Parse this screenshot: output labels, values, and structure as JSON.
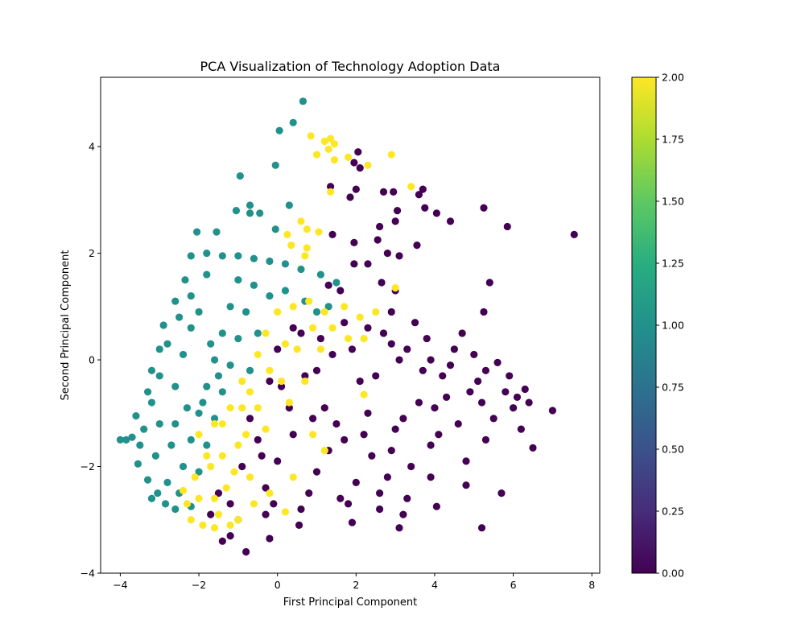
{
  "chart_data": {
    "type": "scatter",
    "title": "PCA Visualization of Technology Adoption Data",
    "xlabel": "First Principal Component",
    "ylabel": "Second Principal Component",
    "xlim": [
      -4.5,
      8.2
    ],
    "ylim": [
      -4.0,
      5.3
    ],
    "x_ticks": [
      -4,
      -2,
      0,
      2,
      4,
      6,
      8
    ],
    "x_tick_labels": [
      "−4",
      "−2",
      "0",
      "2",
      "4",
      "6",
      "8"
    ],
    "y_ticks": [
      -4,
      -2,
      0,
      2,
      4
    ],
    "y_tick_labels": [
      "−4",
      "−2",
      "0",
      "2",
      "4"
    ],
    "grid": false,
    "colormap": "viridis",
    "colorbar": {
      "range": [
        0.0,
        2.0
      ],
      "ticks": [
        0.0,
        0.25,
        0.5,
        0.75,
        1.0,
        1.25,
        1.5,
        1.75,
        2.0
      ],
      "tick_labels": [
        "0.00",
        "0.25",
        "0.50",
        "0.75",
        "1.00",
        "1.25",
        "1.50",
        "1.75",
        "2.00"
      ]
    },
    "classes": [
      {
        "value": 0,
        "color": "#440154"
      },
      {
        "value": 1,
        "color": "#21918c"
      },
      {
        "value": 2,
        "color": "#fde725"
      }
    ],
    "series": [
      {
        "value": 0,
        "points": [
          [
            -1.4,
            -3.4
          ],
          [
            -1.2,
            -3.3
          ],
          [
            -0.8,
            -3.6
          ],
          [
            -0.2,
            -3.35
          ],
          [
            0.55,
            -3.1
          ],
          [
            1.9,
            -3.05
          ],
          [
            3.1,
            -3.15
          ],
          [
            3.2,
            -2.9
          ],
          [
            4.05,
            -2.75
          ],
          [
            5.2,
            -3.15
          ],
          [
            5.7,
            -2.5
          ],
          [
            4.8,
            -2.35
          ],
          [
            6.5,
            -1.65
          ],
          [
            7.0,
            -0.95
          ],
          [
            6.3,
            -0.55
          ],
          [
            6.1,
            -0.7
          ],
          [
            5.6,
            -0.05
          ],
          [
            5.9,
            -0.3
          ],
          [
            6.2,
            -1.3
          ],
          [
            5.3,
            -1.5
          ],
          [
            4.8,
            -1.9
          ],
          [
            3.9,
            -2.2
          ],
          [
            2.6,
            -2.8
          ],
          [
            1.8,
            -2.7
          ],
          [
            0.6,
            -2.8
          ],
          [
            -0.3,
            -2.9
          ],
          [
            -1.0,
            -3.0
          ],
          [
            -0.5,
            -1.5
          ],
          [
            0.1,
            -0.5
          ],
          [
            0.6,
            0.5
          ],
          [
            1.3,
            1.4
          ],
          [
            1.6,
            1.3
          ],
          [
            2.7,
            0.5
          ],
          [
            3.3,
            0.2
          ],
          [
            4.2,
            -0.3
          ],
          [
            5.2,
            -0.8
          ],
          [
            3.0,
            -1.3
          ],
          [
            2.4,
            -1.8
          ],
          [
            1.5,
            -1.2
          ],
          [
            1.0,
            -2.1
          ],
          [
            3.6,
            -0.8
          ],
          [
            4.6,
            -1.2
          ],
          [
            2.1,
            -0.4
          ],
          [
            1.0,
            -0.2
          ],
          [
            0.4,
            -1.4
          ],
          [
            -0.3,
            -2.4
          ],
          [
            -0.7,
            -1.1
          ],
          [
            0.0,
            -1.9
          ],
          [
            2.8,
            -2.2
          ],
          [
            4.4,
            -0.1
          ],
          [
            5.0,
            0.1
          ],
          [
            3.8,
            0.4
          ],
          [
            7.55,
            2.35
          ],
          [
            5.85,
            2.5
          ],
          [
            5.25,
            2.85
          ],
          [
            5.4,
            1.45
          ],
          [
            5.25,
            0.9
          ],
          [
            4.4,
            2.6
          ],
          [
            4.05,
            2.75
          ],
          [
            3.75,
            2.85
          ],
          [
            3.6,
            3.1
          ],
          [
            3.7,
            3.2
          ],
          [
            3.05,
            2.8
          ],
          [
            3.0,
            2.6
          ],
          [
            2.95,
            3.15
          ],
          [
            2.6,
            2.5
          ],
          [
            2.55,
            2.25
          ],
          [
            2.8,
            2.0
          ],
          [
            3.1,
            1.95
          ],
          [
            3.55,
            2.15
          ],
          [
            2.3,
            1.8
          ],
          [
            1.95,
            2.2
          ],
          [
            1.95,
            1.8
          ],
          [
            1.4,
            2.35
          ],
          [
            2.65,
            1.45
          ],
          [
            2.1,
            3.6
          ],
          [
            2.05,
            3.9
          ],
          [
            1.95,
            3.7
          ],
          [
            1.85,
            3.05
          ],
          [
            1.35,
            3.25
          ],
          [
            2.0,
            3.2
          ],
          [
            2.7,
            3.15
          ],
          [
            3.0,
            1.3
          ],
          [
            2.9,
            0.9
          ],
          [
            1.7,
            0.7
          ],
          [
            0.4,
            0.6
          ],
          [
            0.0,
            0.2
          ],
          [
            -0.2,
            -0.4
          ],
          [
            -0.9,
            -2.0
          ],
          [
            -1.5,
            -2.5
          ],
          [
            -1.7,
            -2.9
          ],
          [
            2.3,
            -1.0
          ],
          [
            4.9,
            -0.6
          ],
          [
            5.5,
            -1.1
          ],
          [
            6.0,
            -0.9
          ],
          [
            3.3,
            -2.6
          ],
          [
            3.9,
            -1.6
          ],
          [
            1.2,
            -0.9
          ],
          [
            0.7,
            -0.3
          ],
          [
            1.9,
            0.2
          ],
          [
            2.5,
            -0.3
          ],
          [
            3.1,
            0.0
          ],
          [
            3.7,
            -0.2
          ],
          [
            4.3,
            -0.7
          ],
          [
            2.0,
            -2.3
          ],
          [
            1.3,
            -1.7
          ],
          [
            0.8,
            -2.5
          ],
          [
            -0.1,
            -2.7
          ],
          [
            2.9,
            -1.7
          ],
          [
            4.1,
            -1.4
          ],
          [
            5.1,
            -0.4
          ],
          [
            4.7,
            0.5
          ],
          [
            3.5,
            0.7
          ],
          [
            2.3,
            0.6
          ],
          [
            1.1,
            0.4
          ],
          [
            0.3,
            -0.9
          ],
          [
            -0.4,
            -1.8
          ],
          [
            -1.2,
            -2.7
          ],
          [
            1.6,
            -2.6
          ],
          [
            2.6,
            -2.5
          ],
          [
            3.4,
            -2.0
          ],
          [
            5.8,
            -0.6
          ],
          [
            6.4,
            -0.8
          ],
          [
            3.9,
            0.0
          ],
          [
            2.9,
            0.3
          ],
          [
            1.4,
            0.1
          ],
          [
            0.9,
            -1.1
          ],
          [
            1.7,
            -1.5
          ],
          [
            2.2,
            -1.4
          ],
          [
            3.2,
            -1.1
          ],
          [
            4.0,
            -0.9
          ],
          [
            4.5,
            0.2
          ],
          [
            5.3,
            -0.2
          ]
        ]
      },
      {
        "value": 1,
        "points": [
          [
            0.65,
            4.85
          ],
          [
            0.4,
            4.45
          ],
          [
            0.05,
            4.3
          ],
          [
            -0.05,
            3.65
          ],
          [
            -0.95,
            3.45
          ],
          [
            -0.7,
            2.9
          ],
          [
            -0.7,
            2.75
          ],
          [
            -0.45,
            2.75
          ],
          [
            -1.05,
            2.8
          ],
          [
            0.3,
            2.9
          ],
          [
            -0.05,
            2.45
          ],
          [
            -1.55,
            2.4
          ],
          [
            -2.05,
            2.4
          ],
          [
            -4.0,
            -1.5
          ],
          [
            -3.85,
            -1.5
          ],
          [
            -3.7,
            -1.45
          ],
          [
            -3.5,
            -1.6
          ],
          [
            -3.55,
            -1.95
          ],
          [
            -3.3,
            -2.25
          ],
          [
            -3.2,
            -2.6
          ],
          [
            -3.05,
            -2.5
          ],
          [
            -2.85,
            -2.7
          ],
          [
            -2.6,
            -2.8
          ],
          [
            -2.2,
            -2.75
          ],
          [
            -3.6,
            -1.05
          ],
          [
            -3.3,
            -0.6
          ],
          [
            -3.2,
            -0.2
          ],
          [
            -3.0,
            0.2
          ],
          [
            -2.9,
            0.65
          ],
          [
            -2.6,
            1.1
          ],
          [
            -2.35,
            1.5
          ],
          [
            -2.2,
            1.95
          ],
          [
            -1.8,
            2.0
          ],
          [
            -1.4,
            1.95
          ],
          [
            -1.0,
            1.95
          ],
          [
            -0.6,
            1.9
          ],
          [
            -0.2,
            1.85
          ],
          [
            0.2,
            1.8
          ],
          [
            0.6,
            1.7
          ],
          [
            1.1,
            1.6
          ],
          [
            1.5,
            1.45
          ],
          [
            -1.8,
            1.6
          ],
          [
            -2.2,
            1.2
          ],
          [
            -2.5,
            0.8
          ],
          [
            -2.8,
            0.3
          ],
          [
            -3.0,
            -0.3
          ],
          [
            -3.2,
            -0.8
          ],
          [
            -3.4,
            -1.3
          ],
          [
            -3.1,
            -1.8
          ],
          [
            -2.8,
            -2.3
          ],
          [
            -2.5,
            -2.5
          ],
          [
            -2.4,
            -2.0
          ],
          [
            -2.2,
            -1.5
          ],
          [
            -2.0,
            -1.0
          ],
          [
            -1.8,
            -0.5
          ],
          [
            -1.6,
            0.0
          ],
          [
            -1.4,
            0.5
          ],
          [
            -1.2,
            1.0
          ],
          [
            -1.0,
            1.5
          ],
          [
            -0.6,
            1.4
          ],
          [
            -0.2,
            1.2
          ],
          [
            0.2,
            1.3
          ],
          [
            -0.8,
            0.9
          ],
          [
            -1.0,
            0.4
          ],
          [
            -1.2,
            -0.1
          ],
          [
            -1.4,
            -0.6
          ],
          [
            -1.6,
            -1.1
          ],
          [
            -1.8,
            -1.6
          ],
          [
            -2.0,
            -2.1
          ],
          [
            -2.6,
            -1.2
          ],
          [
            -2.6,
            -0.5
          ],
          [
            -2.4,
            0.1
          ],
          [
            -2.2,
            0.6
          ],
          [
            -2.0,
            0.9
          ],
          [
            -1.7,
            0.3
          ],
          [
            -1.5,
            -0.3
          ],
          [
            -1.9,
            -0.8
          ],
          [
            -2.3,
            -0.9
          ],
          [
            -2.7,
            -1.6
          ],
          [
            -3.0,
            -1.2
          ],
          [
            0.7,
            1.1
          ],
          [
            1.0,
            0.9
          ],
          [
            1.3,
            1.0
          ],
          [
            -0.5,
            0.5
          ],
          [
            -0.7,
            -0.2
          ]
        ]
      },
      {
        "value": 2,
        "points": [
          [
            0.85,
            4.2
          ],
          [
            1.2,
            4.1
          ],
          [
            1.35,
            4.15
          ],
          [
            1.45,
            4.05
          ],
          [
            1.3,
            3.95
          ],
          [
            1.0,
            3.85
          ],
          [
            1.45,
            3.75
          ],
          [
            1.8,
            3.8
          ],
          [
            2.3,
            3.65
          ],
          [
            2.9,
            3.85
          ],
          [
            3.4,
            3.25
          ],
          [
            1.35,
            3.15
          ],
          [
            0.6,
            2.6
          ],
          [
            0.75,
            2.45
          ],
          [
            1.05,
            2.4
          ],
          [
            0.25,
            2.35
          ],
          [
            0.35,
            2.15
          ],
          [
            0.75,
            2.1
          ],
          [
            0.7,
            1.95
          ],
          [
            3.0,
            1.35
          ],
          [
            -0.7,
            -0.6
          ],
          [
            -1.6,
            -1.2
          ],
          [
            -2.1,
            -2.2
          ],
          [
            -2.3,
            -2.7
          ],
          [
            -2.2,
            -3.0
          ],
          [
            -1.9,
            -3.1
          ],
          [
            -1.6,
            -3.15
          ],
          [
            -1.2,
            -3.1
          ],
          [
            -2.4,
            -2.45
          ],
          [
            -2.0,
            -2.6
          ],
          [
            -1.6,
            -2.6
          ],
          [
            -1.3,
            -2.4
          ],
          [
            -1.8,
            -1.8
          ],
          [
            -1.4,
            -1.8
          ],
          [
            -1.0,
            -1.6
          ],
          [
            -1.2,
            -0.9
          ],
          [
            -0.9,
            -0.4
          ],
          [
            -0.5,
            0.1
          ],
          [
            -0.3,
            0.5
          ],
          [
            0.0,
            0.9
          ],
          [
            0.4,
            1.0
          ],
          [
            0.8,
            1.1
          ],
          [
            1.2,
            0.9
          ],
          [
            1.7,
            1.0
          ],
          [
            2.1,
            0.8
          ],
          [
            2.5,
            0.9
          ],
          [
            0.2,
            0.3
          ],
          [
            -0.2,
            -0.2
          ],
          [
            -0.5,
            -0.9
          ],
          [
            -0.8,
            -1.4
          ],
          [
            -1.1,
            -2.1
          ],
          [
            -0.7,
            -2.2
          ],
          [
            -0.3,
            -1.3
          ],
          [
            0.1,
            -0.4
          ],
          [
            0.5,
            0.2
          ],
          [
            0.9,
            0.6
          ],
          [
            1.4,
            0.6
          ],
          [
            -1.7,
            -2.0
          ],
          [
            -2.0,
            -1.4
          ],
          [
            -1.4,
            -1.2
          ],
          [
            -0.9,
            -0.9
          ],
          [
            0.3,
            -0.8
          ],
          [
            0.9,
            -1.4
          ],
          [
            1.2,
            -1.7
          ],
          [
            0.4,
            -2.2
          ],
          [
            -0.2,
            -2.5
          ],
          [
            0.2,
            -2.85
          ],
          [
            2.2,
            -0.65
          ],
          [
            2.2,
            0.4
          ],
          [
            1.8,
            0.4
          ],
          [
            1.1,
            0.2
          ],
          [
            0.7,
            -0.4
          ],
          [
            -0.6,
            -2.7
          ],
          [
            -1.0,
            -3.0
          ],
          [
            -1.5,
            -2.9
          ]
        ]
      }
    ]
  }
}
